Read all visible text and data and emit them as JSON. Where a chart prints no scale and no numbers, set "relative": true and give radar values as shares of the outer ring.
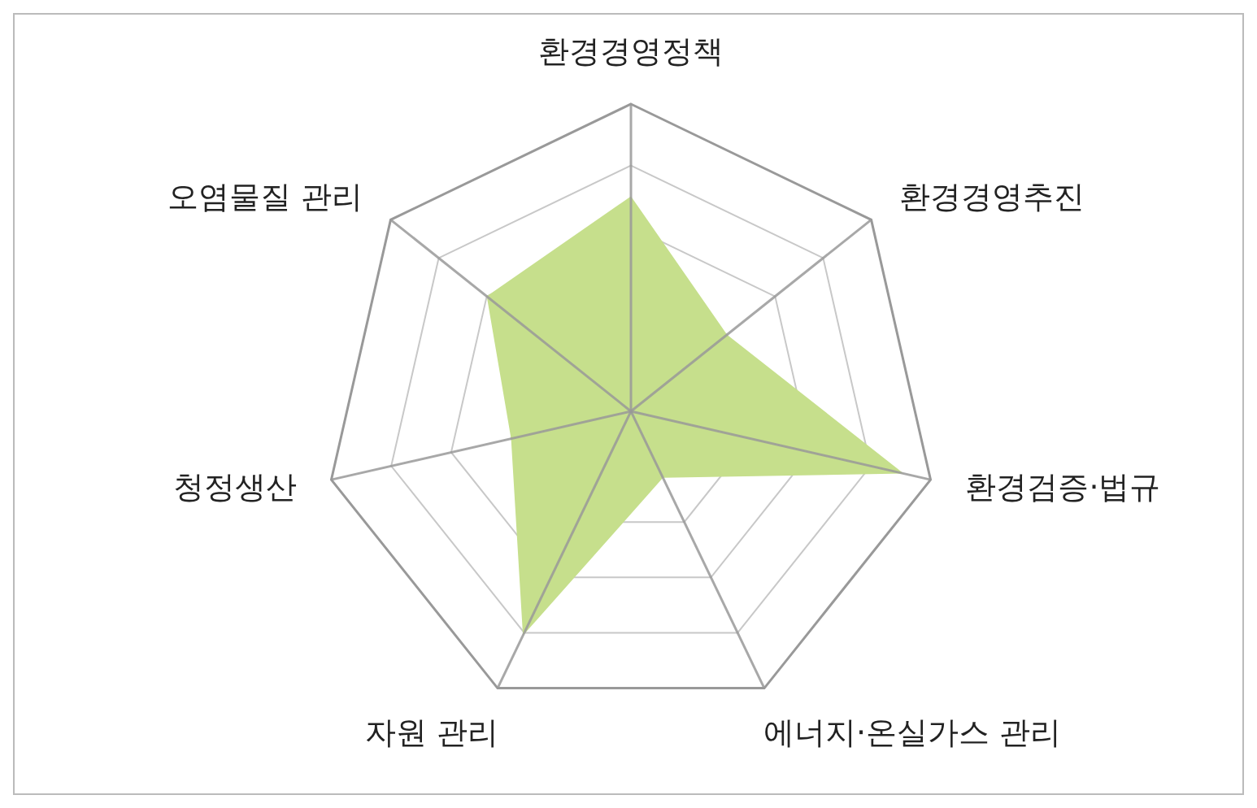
{
  "chart_data": {
    "type": "radar",
    "relative": true,
    "categories": [
      "환경경영정책",
      "환경경영추진",
      "환경검증·법규",
      "에너지·온실가스 관리",
      "자원 관리",
      "청정생산",
      "오염물질 관리"
    ],
    "series": [
      {
        "color": "#c6df8c",
        "values": [
          0.7,
          0.4,
          0.91,
          0.24,
          0.81,
          0.4,
          0.6
        ]
      }
    ],
    "grid": true
  }
}
